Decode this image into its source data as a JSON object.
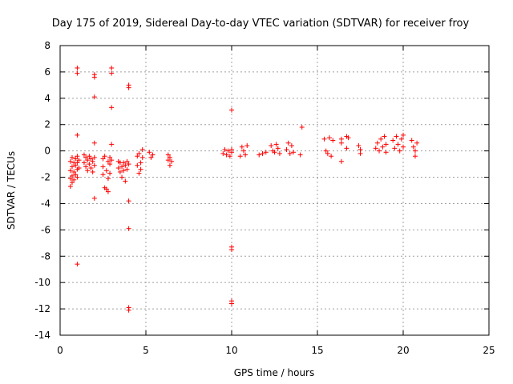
{
  "chart_data": {
    "type": "scatter",
    "title": "Day 175 of 2019, Sidereal Day-to-day VTEC variation (SDTVAR) for receiver froy",
    "xlabel": "GPS time / hours",
    "ylabel": "SDTVAR / TECUs",
    "xlim": [
      0,
      25
    ],
    "ylim": [
      -14,
      8
    ],
    "xticks": [
      0,
      5,
      10,
      15,
      20,
      25
    ],
    "yticks": [
      -14,
      -12,
      -10,
      -8,
      -6,
      -4,
      -2,
      0,
      2,
      4,
      6,
      8
    ],
    "grid": true,
    "marker": "+",
    "color": "#ff0000",
    "series": [
      {
        "name": "SDTVAR",
        "points": [
          [
            0.6,
            -0.8
          ],
          [
            0.6,
            -1.5
          ],
          [
            0.6,
            -2.1
          ],
          [
            0.6,
            -2.7
          ],
          [
            0.7,
            -0.5
          ],
          [
            0.7,
            -1.2
          ],
          [
            0.7,
            -1.9
          ],
          [
            0.7,
            -2.4
          ],
          [
            0.8,
            -0.9
          ],
          [
            0.8,
            -1.6
          ],
          [
            0.8,
            -2.2
          ],
          [
            0.9,
            -0.6
          ],
          [
            0.9,
            -1.1
          ],
          [
            0.9,
            -1.8
          ],
          [
            1.0,
            -0.4
          ],
          [
            1.0,
            -0.9
          ],
          [
            1.0,
            -1.4
          ],
          [
            1.0,
            -2.0
          ],
          [
            1.0,
            1.2
          ],
          [
            1.0,
            6.3
          ],
          [
            1.0,
            5.9
          ],
          [
            1.0,
            -8.6
          ],
          [
            1.1,
            -0.7
          ],
          [
            1.1,
            -1.3
          ],
          [
            1.4,
            -0.3
          ],
          [
            1.4,
            -0.9
          ],
          [
            1.5,
            -0.5
          ],
          [
            1.5,
            -1.2
          ],
          [
            1.6,
            -0.7
          ],
          [
            1.6,
            -1.5
          ],
          [
            1.7,
            -0.4
          ],
          [
            1.7,
            -1.0
          ],
          [
            1.8,
            -0.6
          ],
          [
            1.8,
            -1.3
          ],
          [
            1.9,
            -0.8
          ],
          [
            1.9,
            -1.6
          ],
          [
            2.0,
            -0.5
          ],
          [
            2.0,
            -1.1
          ],
          [
            2.0,
            0.6
          ],
          [
            2.0,
            5.8
          ],
          [
            2.0,
            5.6
          ],
          [
            2.0,
            4.1
          ],
          [
            2.0,
            -3.6
          ],
          [
            2.5,
            -0.6
          ],
          [
            2.5,
            -1.2
          ],
          [
            2.5,
            -1.8
          ],
          [
            2.6,
            -2.8
          ],
          [
            2.6,
            -0.4
          ],
          [
            2.7,
            -1.5
          ],
          [
            2.7,
            -2.9
          ],
          [
            2.8,
            -0.8
          ],
          [
            2.8,
            -2.1
          ],
          [
            2.8,
            -3.1
          ],
          [
            2.9,
            -0.5
          ],
          [
            2.9,
            -1.0
          ],
          [
            2.9,
            -1.7
          ],
          [
            3.0,
            -0.7
          ],
          [
            3.0,
            0.5
          ],
          [
            3.0,
            6.3
          ],
          [
            3.0,
            5.9
          ],
          [
            3.0,
            3.3
          ],
          [
            3.4,
            -0.8
          ],
          [
            3.4,
            -1.3
          ],
          [
            3.5,
            -1.6
          ],
          [
            3.5,
            -0.9
          ],
          [
            3.6,
            -1.2
          ],
          [
            3.6,
            -2.0
          ],
          [
            3.7,
            -0.9
          ],
          [
            3.7,
            -1.5
          ],
          [
            3.8,
            -1.1
          ],
          [
            3.8,
            -2.3
          ],
          [
            3.9,
            -1.4
          ],
          [
            3.9,
            -0.8
          ],
          [
            4.0,
            -1.0
          ],
          [
            4.0,
            5.0
          ],
          [
            4.0,
            4.8
          ],
          [
            4.0,
            -3.8
          ],
          [
            4.0,
            -5.9
          ],
          [
            4.0,
            -11.9
          ],
          [
            4.0,
            -12.1
          ],
          [
            4.5,
            -0.4
          ],
          [
            4.5,
            -1.1
          ],
          [
            4.6,
            -1.7
          ],
          [
            4.6,
            -0.2
          ],
          [
            4.7,
            -0.9
          ],
          [
            4.7,
            -1.4
          ],
          [
            4.8,
            0.1
          ],
          [
            4.8,
            -0.5
          ],
          [
            5.2,
            -0.1
          ],
          [
            5.3,
            -0.5
          ],
          [
            5.4,
            -0.3
          ],
          [
            6.3,
            -0.3
          ],
          [
            6.3,
            -0.7
          ],
          [
            6.4,
            -1.1
          ],
          [
            6.4,
            -0.5
          ],
          [
            6.5,
            -0.8
          ],
          [
            9.5,
            -0.2
          ],
          [
            9.6,
            0.1
          ],
          [
            9.7,
            -0.3
          ],
          [
            9.8,
            0.0
          ],
          [
            9.9,
            -0.4
          ],
          [
            10.0,
            -0.1
          ],
          [
            10.0,
            0.1
          ],
          [
            10.0,
            3.1
          ],
          [
            10.0,
            -7.3
          ],
          [
            10.0,
            -7.5
          ],
          [
            10.0,
            -11.4
          ],
          [
            10.0,
            -11.6
          ],
          [
            10.5,
            -0.4
          ],
          [
            10.6,
            0.3
          ],
          [
            10.7,
            0.0
          ],
          [
            10.8,
            -0.3
          ],
          [
            10.9,
            0.4
          ],
          [
            11.6,
            -0.3
          ],
          [
            11.8,
            -0.2
          ],
          [
            12.0,
            -0.1
          ],
          [
            12.3,
            0.4
          ],
          [
            12.4,
            0.0
          ],
          [
            12.5,
            -0.1
          ],
          [
            12.6,
            0.5
          ],
          [
            12.7,
            0.2
          ],
          [
            12.8,
            -0.2
          ],
          [
            13.2,
            0.1
          ],
          [
            13.3,
            0.6
          ],
          [
            13.4,
            -0.2
          ],
          [
            13.5,
            0.4
          ],
          [
            13.6,
            -0.1
          ],
          [
            14.0,
            -0.3
          ],
          [
            14.1,
            1.8
          ],
          [
            15.4,
            0.9
          ],
          [
            15.5,
            0.0
          ],
          [
            15.6,
            -0.2
          ],
          [
            15.7,
            1.0
          ],
          [
            15.8,
            -0.4
          ],
          [
            15.9,
            0.8
          ],
          [
            16.4,
            0.9
          ],
          [
            16.4,
            0.6
          ],
          [
            16.4,
            -0.8
          ],
          [
            16.7,
            1.1
          ],
          [
            16.8,
            1.0
          ],
          [
            16.7,
            0.2
          ],
          [
            17.4,
            0.4
          ],
          [
            17.5,
            0.1
          ],
          [
            17.5,
            -0.2
          ],
          [
            18.4,
            0.2
          ],
          [
            18.5,
            0.6
          ],
          [
            18.6,
            0.0
          ],
          [
            18.7,
            0.9
          ],
          [
            18.8,
            0.3
          ],
          [
            18.9,
            1.1
          ],
          [
            19.0,
            -0.1
          ],
          [
            19.0,
            0.5
          ],
          [
            19.4,
            0.8
          ],
          [
            19.5,
            0.2
          ],
          [
            19.6,
            1.1
          ],
          [
            19.7,
            0.5
          ],
          [
            19.8,
            0.0
          ],
          [
            19.9,
            0.9
          ],
          [
            20.0,
            0.3
          ],
          [
            20.0,
            1.2
          ],
          [
            20.5,
            0.8
          ],
          [
            20.6,
            0.3
          ],
          [
            20.7,
            0.0
          ],
          [
            20.7,
            -0.4
          ],
          [
            20.8,
            0.6
          ]
        ]
      }
    ]
  }
}
